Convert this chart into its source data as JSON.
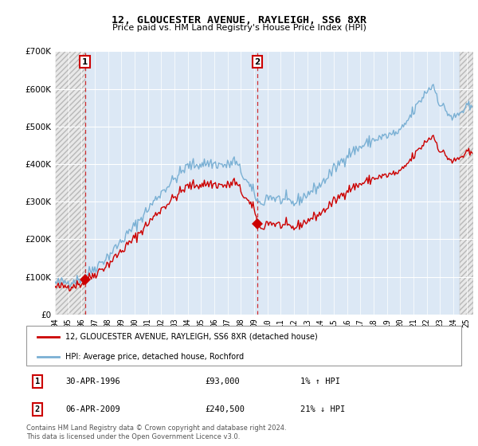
{
  "title": "12, GLOUCESTER AVENUE, RAYLEIGH, SS6 8XR",
  "subtitle": "Price paid vs. HM Land Registry's House Price Index (HPI)",
  "ylim": [
    0,
    700000
  ],
  "yticks": [
    0,
    100000,
    200000,
    300000,
    400000,
    500000,
    600000,
    700000
  ],
  "ytick_labels": [
    "£0",
    "£100K",
    "£200K",
    "£300K",
    "£400K",
    "£500K",
    "£600K",
    "£700K"
  ],
  "background_color": "#dce8f5",
  "hatch_facecolor": "#e8e8e8",
  "hatch_edgecolor": "#b8b8b8",
  "grid_color": "#ffffff",
  "sale1_x": 1996.25,
  "sale1_y": 93000,
  "sale2_x": 2009.25,
  "sale2_y": 240500,
  "hatch_right_start": 2024.5,
  "legend_label_red": "12, GLOUCESTER AVENUE, RAYLEIGH, SS6 8XR (detached house)",
  "legend_label_blue": "HPI: Average price, detached house, Rochford",
  "table_rows": [
    {
      "num": "1",
      "date": "30-APR-1996",
      "price": "£93,000",
      "hpi": "1% ↑ HPI"
    },
    {
      "num": "2",
      "date": "06-APR-2009",
      "price": "£240,500",
      "hpi": "21% ↓ HPI"
    }
  ],
  "footer": "Contains HM Land Registry data © Crown copyright and database right 2024.\nThis data is licensed under the Open Government Licence v3.0.",
  "red_color": "#cc0000",
  "blue_color": "#7ab0d4",
  "xlim_start": 1994.0,
  "xlim_end": 2025.5,
  "xticks": [
    1994,
    1995,
    1996,
    1997,
    1998,
    1999,
    2000,
    2001,
    2002,
    2003,
    2004,
    2005,
    2006,
    2007,
    2008,
    2009,
    2010,
    2011,
    2012,
    2013,
    2014,
    2015,
    2016,
    2017,
    2018,
    2019,
    2020,
    2021,
    2022,
    2023,
    2024,
    2025
  ]
}
